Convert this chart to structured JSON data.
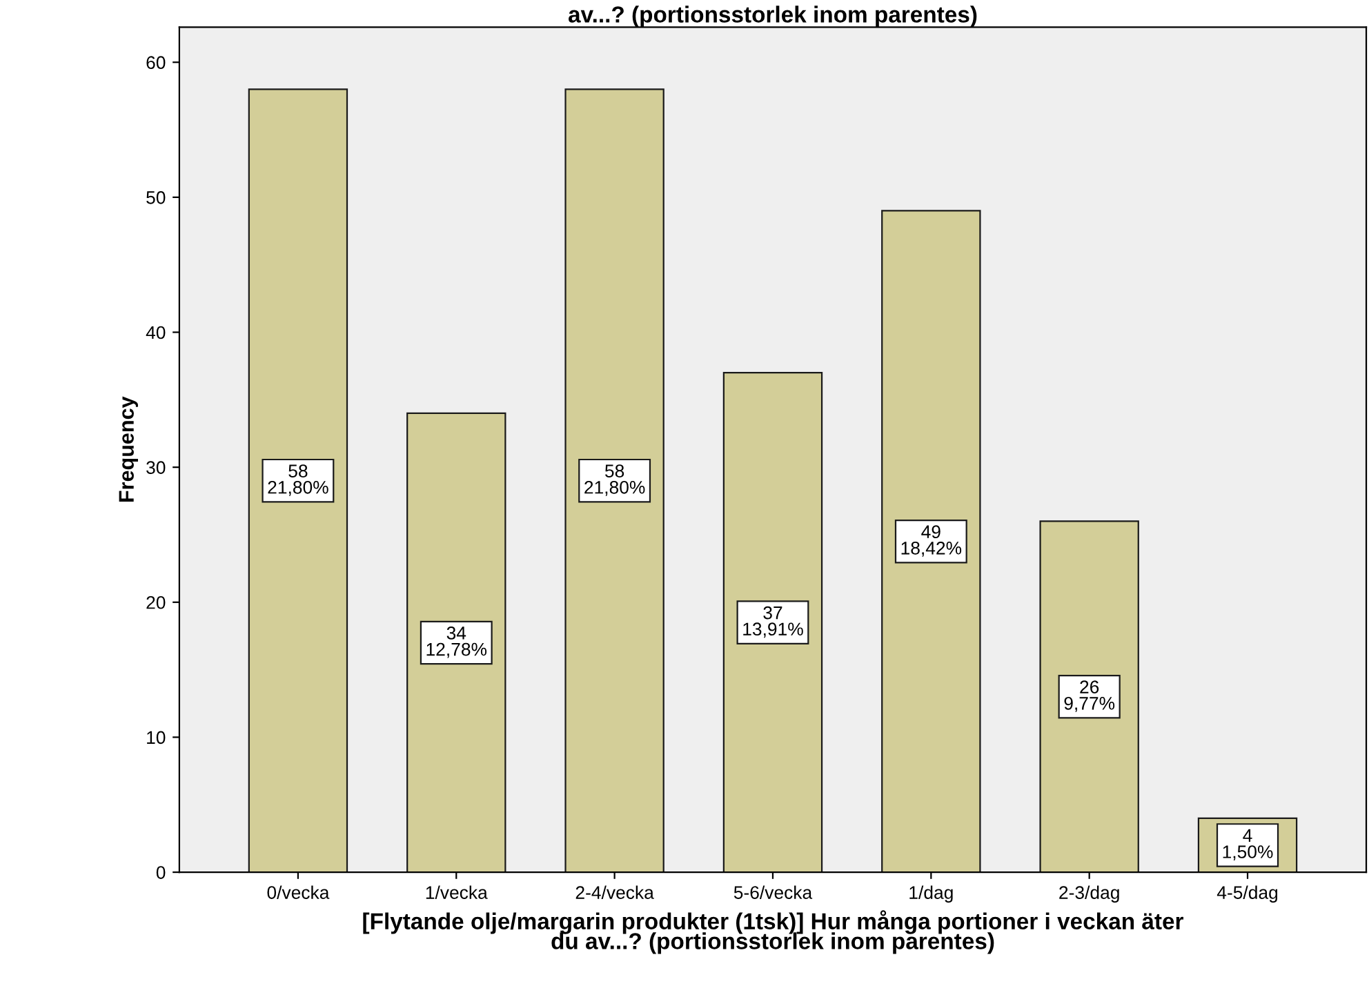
{
  "chart_data": {
    "type": "bar",
    "title": "av...? (portionsstorlek inom parentes)",
    "xlabel": "[Flytande olje/margarin produkter (1tsk)] Hur många portioner i veckan äter\ndu av...? (portionsstorlek inom parentes)",
    "ylabel": "Frequency",
    "categories": [
      "0/vecka",
      "1/vecka",
      "2-4/vecka",
      "5-6/vecka",
      "1/dag",
      "2-3/dag",
      "4-5/dag"
    ],
    "values": [
      58,
      34,
      58,
      37,
      49,
      26,
      4
    ],
    "value_labels": [
      "58\n21,80%",
      "34\n12,78%",
      "58\n21,80%",
      "37\n13,91%",
      "49\n18,42%",
      "26\n9,77%",
      "4\n1,50%"
    ],
    "color": "#d3ce98",
    "ylim": [
      0,
      62.6
    ],
    "yticks": [
      0,
      10,
      20,
      30,
      40,
      50,
      60
    ],
    "grid": false,
    "legend": false
  }
}
